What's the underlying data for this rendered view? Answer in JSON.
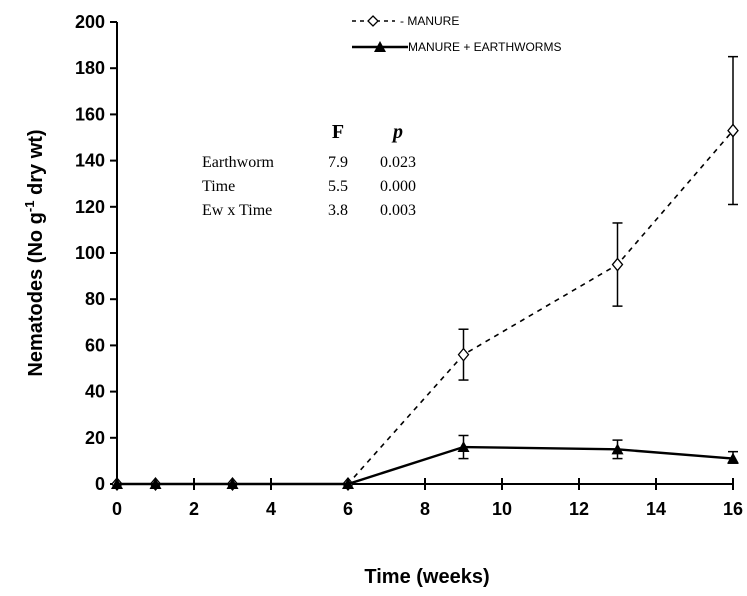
{
  "chart_data": {
    "type": "line",
    "xlabel": "Time (weeks)",
    "ylabel_parts": [
      "Nematodes (No g",
      "-1",
      " dry wt)"
    ],
    "xlim": [
      0,
      16
    ],
    "ylim": [
      0,
      200
    ],
    "x_ticks": [
      0,
      2,
      4,
      6,
      8,
      10,
      12,
      14,
      16
    ],
    "y_ticks": [
      0,
      20,
      40,
      60,
      80,
      100,
      120,
      140,
      160,
      180,
      200
    ],
    "grid": false,
    "legend_position": "top-right",
    "series": [
      {
        "name": "- MANURE",
        "line_style": "dashed",
        "marker": "open-diamond",
        "color": "#000000",
        "points": [
          {
            "x": 0,
            "y": 0
          },
          {
            "x": 1,
            "y": 0
          },
          {
            "x": 3,
            "y": 0
          },
          {
            "x": 6,
            "y": 0
          },
          {
            "x": 9,
            "y": 56,
            "err_lo": 45,
            "err_hi": 67
          },
          {
            "x": 13,
            "y": 95,
            "err_lo": 77,
            "err_hi": 113
          },
          {
            "x": 16,
            "y": 153,
            "err_lo": 121,
            "err_hi": 185
          }
        ]
      },
      {
        "name": "MANURE + EARTHWORMS",
        "line_style": "solid",
        "marker": "filled-triangle",
        "color": "#000000",
        "points": [
          {
            "x": 0,
            "y": 0
          },
          {
            "x": 1,
            "y": 0
          },
          {
            "x": 3,
            "y": 0
          },
          {
            "x": 6,
            "y": 0
          },
          {
            "x": 9,
            "y": 16,
            "err_lo": 11,
            "err_hi": 21
          },
          {
            "x": 13,
            "y": 15,
            "err_lo": 11,
            "err_hi": 19
          },
          {
            "x": 16,
            "y": 11,
            "err_lo": 9,
            "err_hi": 14
          }
        ]
      }
    ],
    "stats_table": {
      "headers": [
        "F",
        "p"
      ],
      "rows": [
        {
          "label": "Earthworm",
          "F": "7.9",
          "p": "0.023"
        },
        {
          "label": "Time",
          "F": "5.5",
          "p": "0.000"
        },
        {
          "label": "Ew x Time",
          "F": "3.8",
          "p": "0.003"
        }
      ]
    }
  }
}
